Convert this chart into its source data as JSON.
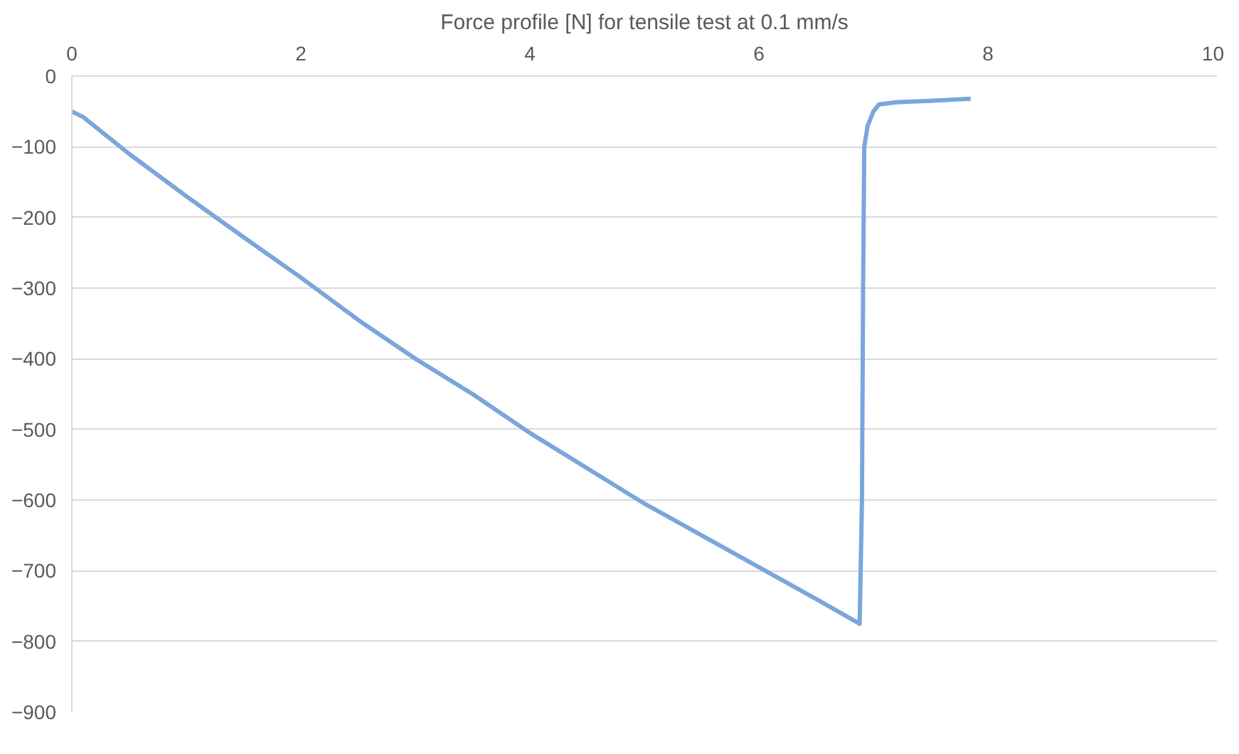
{
  "chart_data": {
    "type": "line",
    "title": "Force profile [N] for tensile test at 0.1 mm/s",
    "xlim": [
      0,
      10
    ],
    "xticks": [
      0,
      2,
      4,
      6,
      8,
      10
    ],
    "ylim": [
      -900,
      0
    ],
    "yticks": [
      0,
      -100,
      -200,
      -300,
      -400,
      -500,
      -600,
      -700,
      -800,
      -900
    ],
    "grid": "y",
    "series": [
      {
        "color": "#7aa6dc",
        "x": [
          0,
          0.1,
          0.5,
          1,
          1.5,
          2,
          2.5,
          3,
          3.5,
          4,
          4.5,
          5,
          5.5,
          6,
          6.5,
          6.88,
          6.9,
          6.91,
          6.92,
          6.95,
          7.0,
          7.05,
          7.2,
          7.5,
          7.85
        ],
        "values": [
          -50,
          -58,
          -110,
          -170,
          -228,
          -285,
          -345,
          -400,
          -450,
          -505,
          -555,
          -605,
          -650,
          -695,
          -740,
          -775,
          -600,
          -300,
          -100,
          -70,
          -50,
          -40,
          -37,
          -35,
          -32
        ]
      }
    ]
  }
}
